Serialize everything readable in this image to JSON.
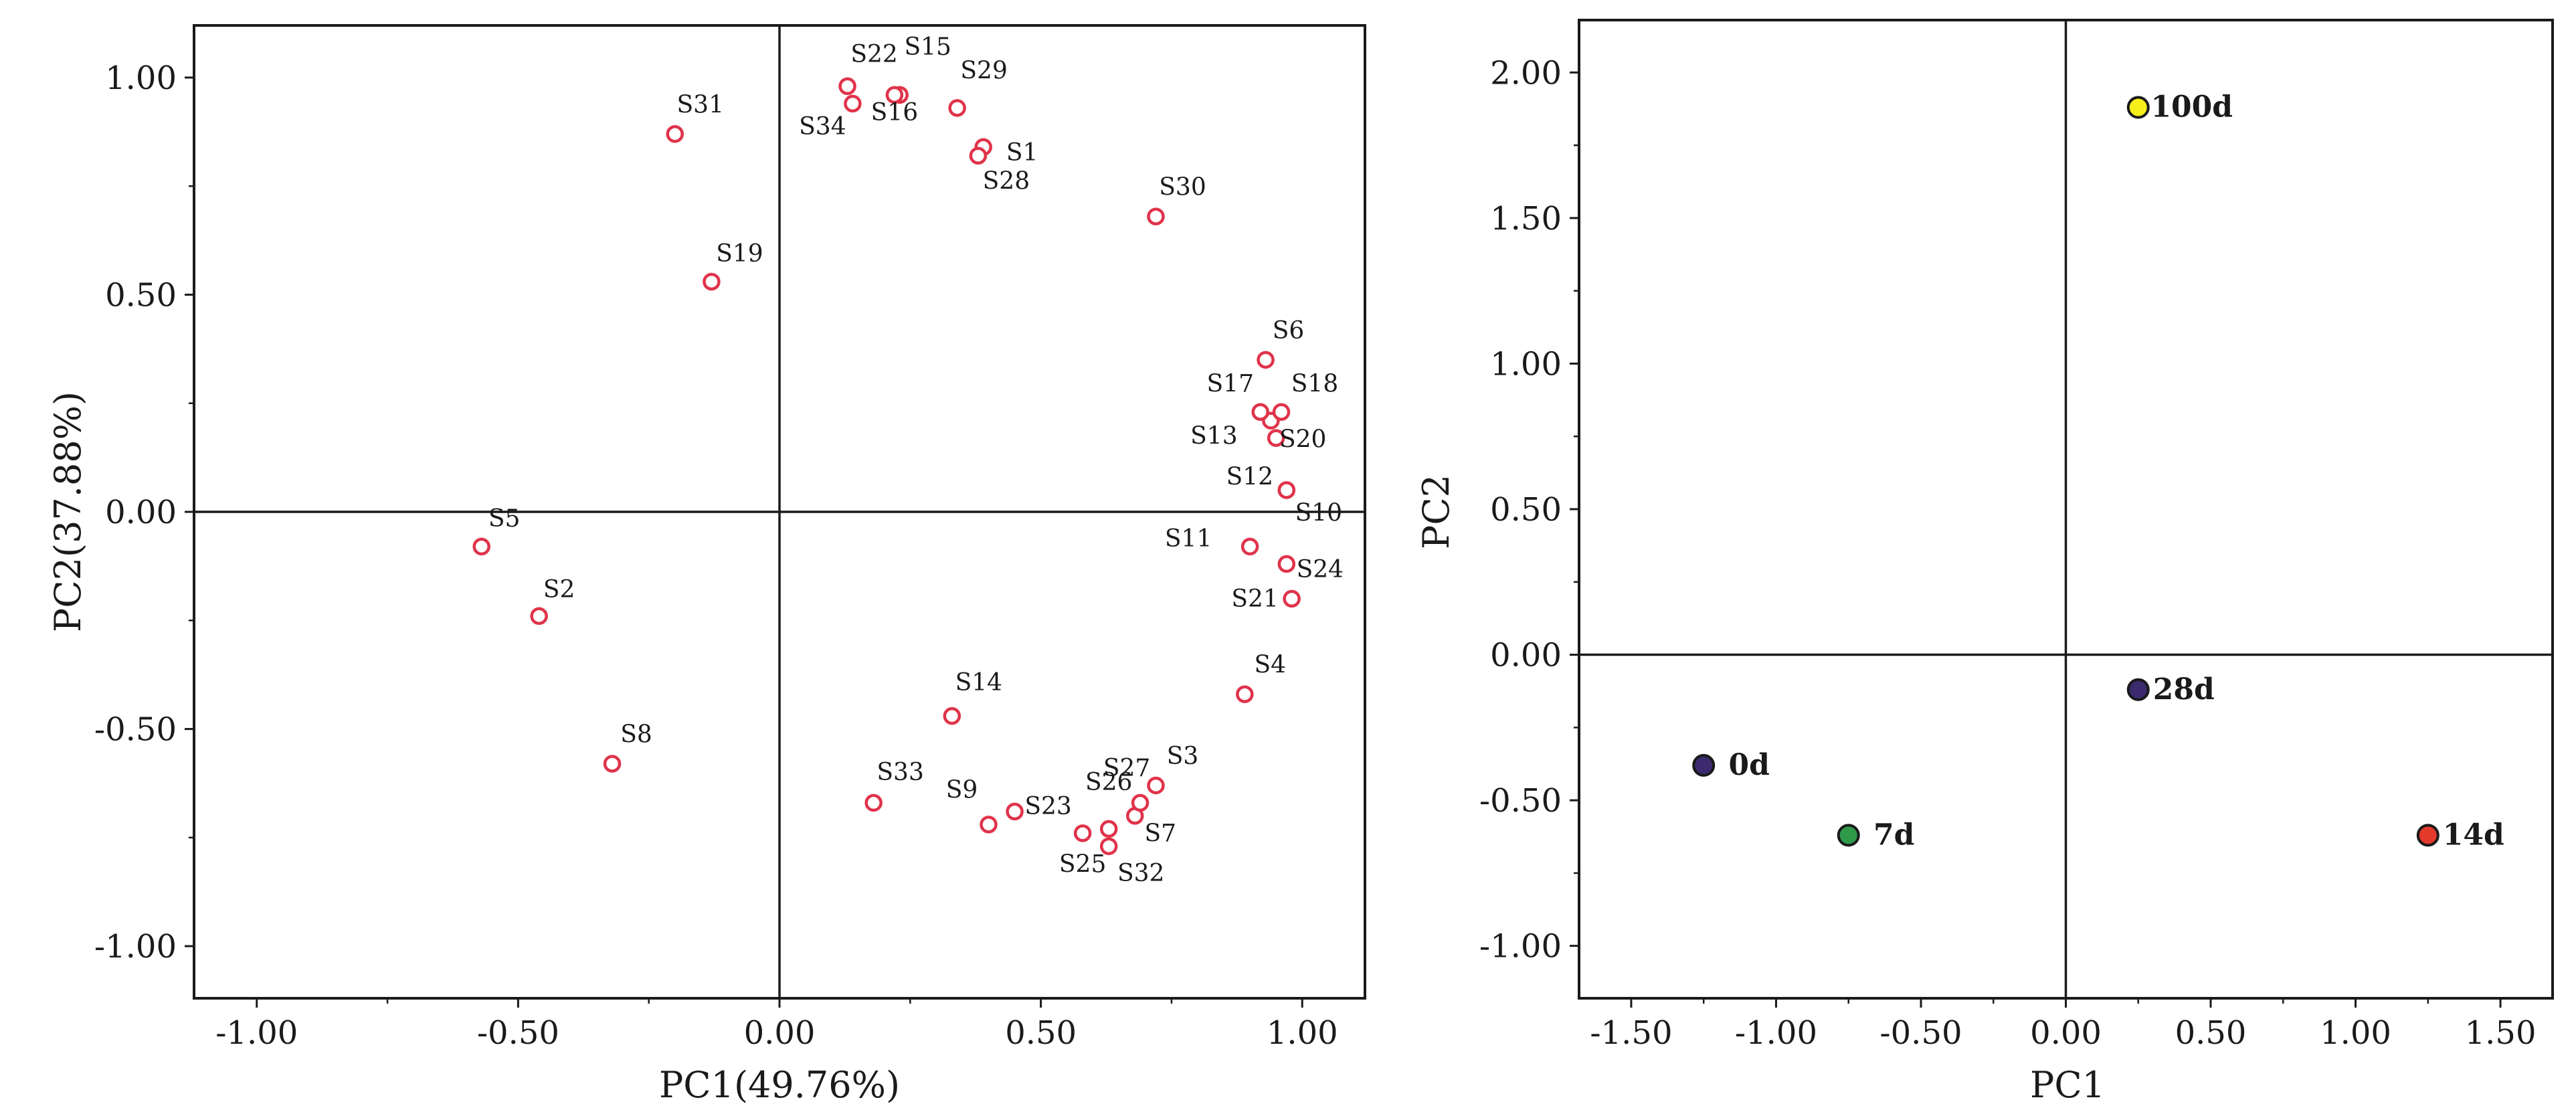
{
  "chart_data": [
    {
      "type": "scatter",
      "xlabel": "PC1(49.76%)",
      "ylabel": "PC2(37.88%)",
      "xlim": [
        -1.12,
        1.12
      ],
      "ylim": [
        -1.12,
        1.12
      ],
      "xticks": [
        -1.0,
        -0.5,
        0.0,
        0.5,
        1.0
      ],
      "yticks": [
        -1.0,
        -0.5,
        0.0,
        0.5,
        1.0
      ],
      "xtick_labels": [
        "-1.00",
        "-0.50",
        "0.00",
        "0.50",
        "1.00"
      ],
      "ytick_labels": [
        "-1.00",
        "-0.50",
        "0.00",
        "0.50",
        "1.00"
      ],
      "marker": "hollow-circle",
      "marker_color": "#e0334a",
      "points": [
        {
          "label": "S1",
          "x": 0.39,
          "y": 0.84
        },
        {
          "label": "S2",
          "x": -0.46,
          "y": -0.24
        },
        {
          "label": "S3",
          "x": 0.72,
          "y": -0.63
        },
        {
          "label": "S4",
          "x": 0.89,
          "y": -0.42
        },
        {
          "label": "S5",
          "x": -0.57,
          "y": -0.08
        },
        {
          "label": "S6",
          "x": 0.93,
          "y": 0.35
        },
        {
          "label": "S7",
          "x": 0.68,
          "y": -0.7
        },
        {
          "label": "S8",
          "x": -0.32,
          "y": -0.58
        },
        {
          "label": "S9",
          "x": 0.4,
          "y": -0.72
        },
        {
          "label": "S10",
          "x": 0.97,
          "y": 0.05
        },
        {
          "label": "S11",
          "x": 0.9,
          "y": -0.08
        },
        {
          "label": "S12",
          "x": 0.97,
          "y": 0.05
        },
        {
          "label": "S13",
          "x": 0.94,
          "y": 0.21
        },
        {
          "label": "S14",
          "x": 0.33,
          "y": -0.47
        },
        {
          "label": "S15",
          "x": 0.23,
          "y": 0.96
        },
        {
          "label": "S16",
          "x": 0.22,
          "y": 0.96
        },
        {
          "label": "S17",
          "x": 0.92,
          "y": 0.23
        },
        {
          "label": "S18",
          "x": 0.96,
          "y": 0.23
        },
        {
          "label": "S19",
          "x": -0.13,
          "y": 0.53
        },
        {
          "label": "S20",
          "x": 0.95,
          "y": 0.17
        },
        {
          "label": "S21",
          "x": 0.98,
          "y": -0.2
        },
        {
          "label": "S22",
          "x": 0.13,
          "y": 0.98
        },
        {
          "label": "S23",
          "x": 0.45,
          "y": -0.69
        },
        {
          "label": "S24",
          "x": 0.97,
          "y": -0.12
        },
        {
          "label": "S25",
          "x": 0.58,
          "y": -0.74
        },
        {
          "label": "S26",
          "x": 0.63,
          "y": -0.73
        },
        {
          "label": "S27",
          "x": 0.69,
          "y": -0.67
        },
        {
          "label": "S28",
          "x": 0.38,
          "y": 0.82
        },
        {
          "label": "S29",
          "x": 0.34,
          "y": 0.93
        },
        {
          "label": "S30",
          "x": 0.72,
          "y": 0.68
        },
        {
          "label": "S31",
          "x": -0.2,
          "y": 0.87
        },
        {
          "label": "S32",
          "x": 0.63,
          "y": -0.77
        },
        {
          "label": "S33",
          "x": 0.18,
          "y": -0.67
        },
        {
          "label": "S34",
          "x": 0.14,
          "y": 0.94
        }
      ]
    },
    {
      "type": "scatter",
      "xlabel": "PC1",
      "ylabel": "PC2",
      "xlim": [
        -1.68,
        1.68
      ],
      "ylim": [
        -1.18,
        2.18
      ],
      "xticks": [
        -1.5,
        -1.0,
        -0.5,
        0.0,
        0.5,
        1.0,
        1.5
      ],
      "yticks": [
        -1.0,
        -0.5,
        0.0,
        0.5,
        1.0,
        1.5,
        2.0
      ],
      "xtick_labels": [
        "-1.50",
        "-1.00",
        "-0.50",
        "0.00",
        "0.50",
        "1.00",
        "1.50"
      ],
      "ytick_labels": [
        "-1.00",
        "-0.50",
        "0.00",
        "0.50",
        "1.00",
        "1.50",
        "2.00"
      ],
      "marker": "filled-circle",
      "points": [
        {
          "label": "0d",
          "x": -1.25,
          "y": -0.38,
          "color": "#3b2a6e"
        },
        {
          "label": "7d",
          "x": -0.75,
          "y": -0.62,
          "color": "#2e9a4a"
        },
        {
          "label": "14d",
          "x": 1.25,
          "y": -0.62,
          "color": "#e33a2b"
        },
        {
          "label": "28d",
          "x": 0.25,
          "y": -0.12,
          "color": "#3b2a6e"
        },
        {
          "label": "100d",
          "x": 0.25,
          "y": 1.88,
          "color": "#f7ef1a"
        }
      ]
    }
  ]
}
